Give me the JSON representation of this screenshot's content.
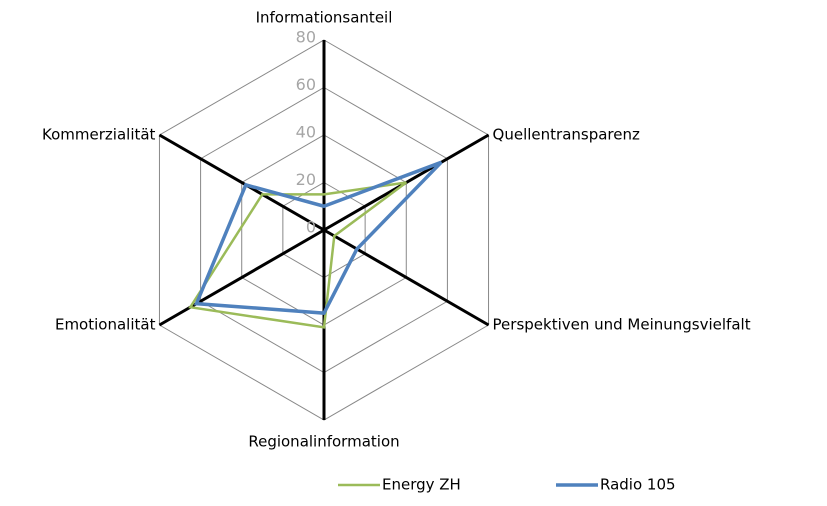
{
  "chart_data": {
    "type": "radar",
    "categories": [
      "Informationsanteil",
      "Quellentransparenz",
      "Perspektiven und Meinungsvielfalt",
      "Regionalinformation",
      "Emotionalität",
      "Kommerzialität"
    ],
    "series": [
      {
        "name": "Energy ZH",
        "color": "#9bbb59",
        "values": [
          15,
          40,
          5,
          41,
          65,
          30
        ]
      },
      {
        "name": "Radio 105",
        "color": "#4f81bd",
        "values": [
          10,
          57,
          16,
          35,
          62,
          38
        ]
      }
    ],
    "ylim": [
      0,
      80
    ],
    "yticks": [
      0,
      20,
      40,
      60,
      80
    ],
    "grid": true,
    "legend": "bottom"
  }
}
